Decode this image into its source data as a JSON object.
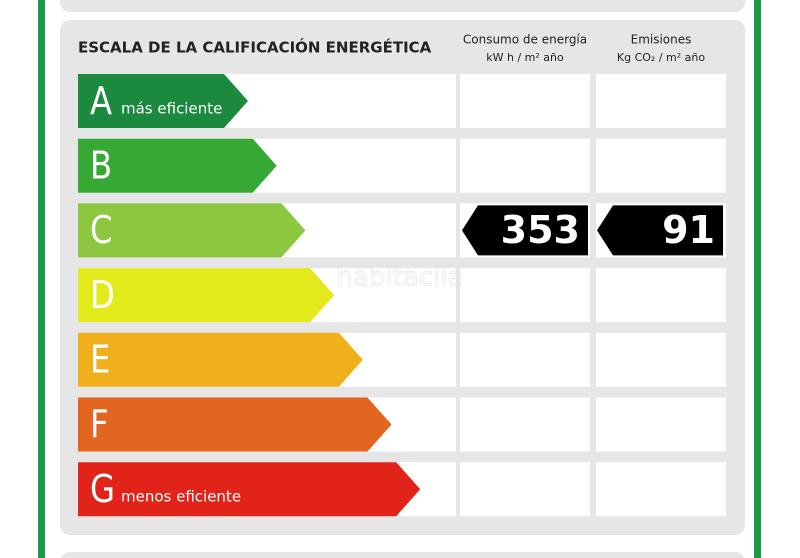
{
  "title": "ESCALA DE LA CALIFICACIÓN ENERGÉTICA",
  "columns": [
    {
      "title": "Consumo de energía",
      "unit": "kW h / m² año"
    },
    {
      "title": "Emisiones",
      "unit": "Kg CO₂ / m² año"
    }
  ],
  "scale": [
    {
      "letter": "A",
      "label": "más eficiente",
      "color": "#1b8a3e"
    },
    {
      "letter": "B",
      "color": "#36a935"
    },
    {
      "letter": "C",
      "color": "#8dc63f",
      "consumption": 353,
      "emissions": 91
    },
    {
      "letter": "D",
      "color": "#e3ea1c"
    },
    {
      "letter": "E",
      "color": "#efb01b"
    },
    {
      "letter": "F",
      "color": "#e2661f"
    },
    {
      "letter": "G",
      "label": "menos eficiente",
      "color": "#e2231a"
    }
  ],
  "watermark": "habitaclia"
}
